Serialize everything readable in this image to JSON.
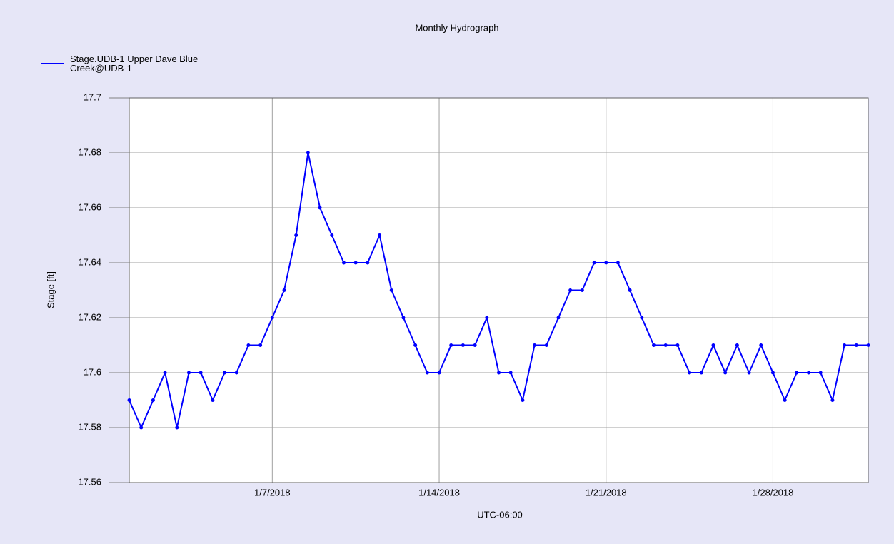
{
  "chart_data": {
    "type": "line",
    "title": "Monthly Hydrograph",
    "x_label": "UTC-06:00",
    "y_label": "Stage [ft]",
    "x": [
      "2018-01-01T00:00",
      "2018-01-01T12:00",
      "2018-01-02T00:00",
      "2018-01-02T12:00",
      "2018-01-03T00:00",
      "2018-01-03T12:00",
      "2018-01-04T00:00",
      "2018-01-04T12:00",
      "2018-01-05T00:00",
      "2018-01-05T12:00",
      "2018-01-06T00:00",
      "2018-01-06T12:00",
      "2018-01-07T00:00",
      "2018-01-07T12:00",
      "2018-01-08T00:00",
      "2018-01-08T12:00",
      "2018-01-09T00:00",
      "2018-01-09T12:00",
      "2018-01-10T00:00",
      "2018-01-10T12:00",
      "2018-01-11T00:00",
      "2018-01-11T12:00",
      "2018-01-12T00:00",
      "2018-01-12T12:00",
      "2018-01-13T00:00",
      "2018-01-13T12:00",
      "2018-01-14T00:00",
      "2018-01-14T12:00",
      "2018-01-15T00:00",
      "2018-01-15T12:00",
      "2018-01-16T00:00",
      "2018-01-16T12:00",
      "2018-01-17T00:00",
      "2018-01-17T12:00",
      "2018-01-18T00:00",
      "2018-01-18T12:00",
      "2018-01-19T00:00",
      "2018-01-19T12:00",
      "2018-01-20T00:00",
      "2018-01-20T12:00",
      "2018-01-21T00:00",
      "2018-01-21T12:00",
      "2018-01-22T00:00",
      "2018-01-22T12:00",
      "2018-01-23T00:00",
      "2018-01-23T12:00",
      "2018-01-24T00:00",
      "2018-01-24T12:00",
      "2018-01-25T00:00",
      "2018-01-25T12:00",
      "2018-01-26T00:00",
      "2018-01-26T12:00",
      "2018-01-27T00:00",
      "2018-01-27T12:00",
      "2018-01-28T00:00",
      "2018-01-28T12:00",
      "2018-01-29T00:00",
      "2018-01-29T12:00",
      "2018-01-30T00:00",
      "2018-01-30T12:00",
      "2018-01-31T00:00",
      "2018-01-31T12:00",
      "2018-02-01T00:00"
    ],
    "series": [
      {
        "name": "Stage.UDB-1 Upper Dave Blue Creek@UDB-1",
        "color": "#0000ff",
        "values": [
          17.59,
          17.58,
          17.59,
          17.6,
          17.58,
          17.6,
          17.6,
          17.59,
          17.6,
          17.6,
          17.61,
          17.61,
          17.62,
          17.63,
          17.65,
          17.68,
          17.66,
          17.65,
          17.64,
          17.64,
          17.64,
          17.65,
          17.63,
          17.62,
          17.61,
          17.6,
          17.6,
          17.61,
          17.61,
          17.61,
          17.62,
          17.6,
          17.6,
          17.59,
          17.61,
          17.61,
          17.62,
          17.63,
          17.63,
          17.64,
          17.64,
          17.64,
          17.63,
          17.62,
          17.61,
          17.61,
          17.61,
          17.6,
          17.6,
          17.61,
          17.6,
          17.61,
          17.6,
          17.61,
          17.6,
          17.59,
          17.6,
          17.6,
          17.6,
          17.59,
          17.61,
          17.61,
          17.61
        ]
      }
    ],
    "xlim": [
      "2018-01-01T00:00",
      "2018-02-01T00:00"
    ],
    "xticks": [
      {
        "value": "2018-01-07T00:00",
        "label": "1/7/2018"
      },
      {
        "value": "2018-01-14T00:00",
        "label": "1/14/2018"
      },
      {
        "value": "2018-01-21T00:00",
        "label": "1/21/2018"
      },
      {
        "value": "2018-01-28T00:00",
        "label": "1/28/2018"
      }
    ],
    "ylim": [
      17.56,
      17.7
    ],
    "yticks": [
      17.56,
      17.58,
      17.6,
      17.62,
      17.64,
      17.66,
      17.68,
      17.7
    ],
    "grid": true,
    "legend": "top-left"
  }
}
